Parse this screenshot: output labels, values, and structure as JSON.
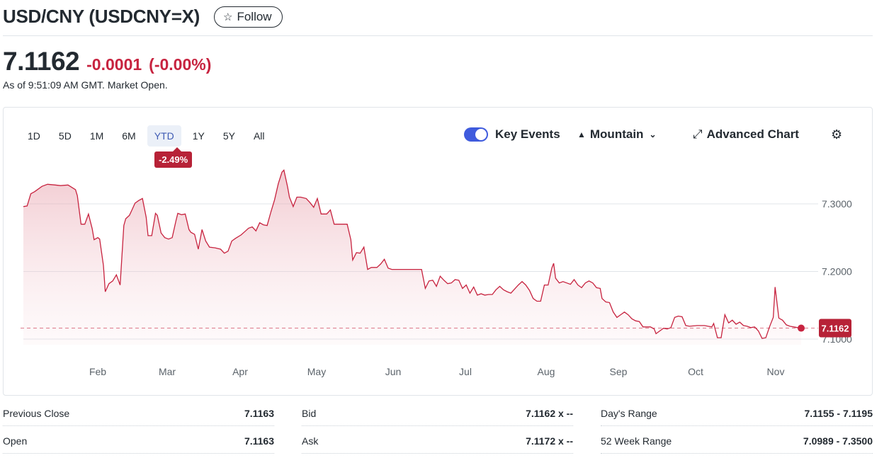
{
  "header": {
    "title": "USD/CNY (USDCNY=X)",
    "follow_label": "Follow",
    "follow_icon": "star-icon"
  },
  "quote": {
    "price": "7.1162",
    "change": "-0.0001",
    "change_pct": "(-0.00%)",
    "as_of": "As of 9:51:09 AM GMT. Market Open.",
    "negative_color": "#c7233f"
  },
  "chart_controls": {
    "ranges": [
      "1D",
      "5D",
      "1M",
      "6M",
      "YTD",
      "1Y",
      "5Y",
      "All"
    ],
    "active_range": "YTD",
    "range_change": "-2.49%",
    "key_events_label": "Key Events",
    "key_events_on": true,
    "chart_type_label": "Mountain",
    "advanced_label": "Advanced Chart",
    "settings_icon": "gear-icon"
  },
  "chart_data": {
    "type": "area",
    "current_value": 7.1162,
    "current_label": "7.1162",
    "line_color": "#c7233f",
    "ylim": [
      7.08,
      7.36
    ],
    "y_ticks": [
      7.3,
      7.2,
      7.1
    ],
    "y_tick_labels": [
      "7.3000",
      "7.2000",
      "7.1000"
    ],
    "x_labels": [
      "Feb",
      "Mar",
      "Apr",
      "May",
      "Jun",
      "Jul",
      "Aug",
      "Sep",
      "Oct",
      "Nov"
    ],
    "x_label_days": [
      31,
      59,
      90,
      120,
      151,
      181,
      212,
      243,
      273,
      304
    ],
    "x_range_days": [
      0,
      316
    ],
    "series": [
      {
        "values": [
          [
            2,
            7.296
          ],
          [
            4,
            7.297
          ],
          [
            6,
            7.315
          ],
          [
            8,
            7.318
          ],
          [
            12,
            7.326
          ],
          [
            15,
            7.329
          ],
          [
            19,
            7.328
          ],
          [
            22,
            7.327
          ],
          [
            26,
            7.328
          ],
          [
            30,
            7.321
          ],
          [
            31,
            7.312
          ],
          [
            33,
            7.27
          ],
          [
            35,
            7.27
          ],
          [
            37,
            7.285
          ],
          [
            39,
            7.263
          ],
          [
            40,
            7.247
          ],
          [
            42,
            7.25
          ],
          [
            43,
            7.248
          ],
          [
            45,
            7.209
          ],
          [
            46,
            7.17
          ],
          [
            48,
            7.182
          ],
          [
            50,
            7.186
          ],
          [
            52,
            7.195
          ],
          [
            54,
            7.18
          ],
          [
            56,
            7.268
          ],
          [
            57,
            7.278
          ],
          [
            59,
            7.283
          ],
          [
            60,
            7.289
          ],
          [
            62,
            7.301
          ],
          [
            64,
            7.305
          ],
          [
            66,
            7.308
          ],
          [
            68,
            7.28
          ],
          [
            69,
            7.253
          ],
          [
            71,
            7.253
          ],
          [
            73,
            7.286
          ],
          [
            74,
            7.283
          ],
          [
            76,
            7.257
          ],
          [
            78,
            7.25
          ],
          [
            80,
            7.248
          ],
          [
            82,
            7.25
          ],
          [
            84,
            7.275
          ],
          [
            85,
            7.286
          ],
          [
            87,
            7.284
          ],
          [
            89,
            7.285
          ],
          [
            91,
            7.262
          ],
          [
            92,
            7.258
          ],
          [
            94,
            7.255
          ],
          [
            96,
            7.233
          ],
          [
            98,
            7.262
          ],
          [
            100,
            7.245
          ],
          [
            102,
            7.236
          ],
          [
            105,
            7.235
          ],
          [
            108,
            7.233
          ],
          [
            110,
            7.227
          ],
          [
            112,
            7.23
          ],
          [
            114,
            7.245
          ],
          [
            116,
            7.249
          ],
          [
            119,
            7.254
          ],
          [
            121,
            7.259
          ],
          [
            123,
            7.264
          ],
          [
            125,
            7.266
          ],
          [
            127,
            7.26
          ],
          [
            129,
            7.272
          ],
          [
            131,
            7.269
          ],
          [
            133,
            7.268
          ],
          [
            135,
            7.288
          ],
          [
            137,
            7.306
          ],
          [
            139,
            7.33
          ],
          [
            141,
            7.347
          ],
          [
            142,
            7.35
          ],
          [
            144,
            7.325
          ],
          [
            145,
            7.31
          ],
          [
            147,
            7.296
          ],
          [
            149,
            7.31
          ],
          [
            151,
            7.31
          ],
          [
            154,
            7.308
          ],
          [
            156,
            7.302
          ],
          [
            158,
            7.295
          ],
          [
            160,
            7.308
          ],
          [
            162,
            7.285
          ],
          [
            165,
            7.285
          ],
          [
            167,
            7.291
          ],
          [
            169,
            7.27
          ],
          [
            172,
            7.27
          ],
          [
            176,
            7.27
          ],
          [
            178,
            7.247
          ],
          [
            179,
            7.217
          ],
          [
            181,
            7.228
          ],
          [
            183,
            7.227
          ],
          [
            185,
            7.236
          ],
          [
            187,
            7.203
          ],
          [
            189,
            7.206
          ],
          [
            192,
            7.206
          ],
          [
            194,
            7.211
          ],
          [
            196,
            7.218
          ],
          [
            198,
            7.205
          ],
          [
            200,
            7.203
          ],
          [
            203,
            7.203
          ],
          [
            208,
            7.203
          ],
          [
            213,
            7.203
          ],
          [
            216,
            7.203
          ],
          [
            218,
            7.175
          ],
          [
            220,
            7.186
          ],
          [
            222,
            7.187
          ],
          [
            224,
            7.178
          ],
          [
            226,
            7.193
          ],
          [
            228,
            7.187
          ],
          [
            230,
            7.182
          ],
          [
            232,
            7.183
          ],
          [
            234,
            7.188
          ],
          [
            236,
            7.187
          ],
          [
            238,
            7.175
          ],
          [
            240,
            7.18
          ],
          [
            242,
            7.168
          ],
          [
            244,
            7.177
          ],
          [
            246,
            7.165
          ],
          [
            248,
            7.167
          ],
          [
            250,
            7.165
          ],
          [
            252,
            7.166
          ],
          [
            254,
            7.166
          ],
          [
            256,
            7.173
          ],
          [
            258,
            7.178
          ],
          [
            260,
            7.173
          ],
          [
            262,
            7.17
          ],
          [
            264,
            7.168
          ],
          [
            266,
            7.174
          ],
          [
            268,
            7.18
          ],
          [
            270,
            7.185
          ],
          [
            272,
            7.18
          ],
          [
            274,
            7.172
          ],
          [
            276,
            7.16
          ],
          [
            278,
            7.156
          ],
          [
            280,
            7.156
          ],
          [
            282,
            7.18
          ],
          [
            284,
            7.18
          ],
          [
            286,
            7.205
          ],
          [
            287,
            7.212
          ],
          [
            288,
            7.19
          ],
          [
            290,
            7.183
          ],
          [
            292,
            7.185
          ],
          [
            294,
            7.183
          ],
          [
            296,
            7.181
          ],
          [
            298,
            7.188
          ],
          [
            300,
            7.18
          ],
          [
            302,
            7.176
          ],
          [
            304,
            7.183
          ],
          [
            306,
            7.186
          ],
          [
            308,
            7.183
          ],
          [
            310,
            7.176
          ],
          [
            312,
            7.175
          ],
          [
            313,
            7.16
          ],
          [
            315,
            7.155
          ],
          [
            317,
            7.154
          ],
          [
            319,
            7.14
          ],
          [
            321,
            7.132
          ],
          [
            323,
            7.136
          ],
          [
            325,
            7.14
          ],
          [
            327,
            7.136
          ],
          [
            329,
            7.13
          ],
          [
            331,
            7.127
          ],
          [
            333,
            7.126
          ],
          [
            335,
            7.118
          ],
          [
            337,
            7.118
          ],
          [
            339,
            7.118
          ],
          [
            341,
            7.115
          ],
          [
            342,
            7.108
          ],
          [
            344,
            7.112
          ],
          [
            346,
            7.116
          ],
          [
            348,
            7.115
          ],
          [
            350,
            7.117
          ],
          [
            352,
            7.132
          ],
          [
            354,
            7.134
          ],
          [
            356,
            7.133
          ],
          [
            358,
            7.12
          ],
          [
            360,
            7.119
          ],
          [
            364,
            7.12
          ],
          [
            368,
            7.12
          ],
          [
            370,
            7.119
          ],
          [
            372,
            7.118
          ],
          [
            373,
            7.123
          ],
          [
            375,
            7.102
          ],
          [
            377,
            7.102
          ],
          [
            379,
            7.136
          ],
          [
            381,
            7.124
          ],
          [
            383,
            7.128
          ],
          [
            385,
            7.122
          ],
          [
            387,
            7.125
          ],
          [
            389,
            7.12
          ],
          [
            391,
            7.119
          ],
          [
            393,
            7.117
          ],
          [
            395,
            7.118
          ],
          [
            397,
            7.112
          ],
          [
            399,
            7.101
          ],
          [
            401,
            7.102
          ],
          [
            403,
            7.118
          ],
          [
            405,
            7.132
          ],
          [
            406,
            7.177
          ],
          [
            408,
            7.131
          ],
          [
            410,
            7.128
          ],
          [
            412,
            7.121
          ],
          [
            414,
            7.119
          ],
          [
            416,
            7.118
          ],
          [
            418,
            7.117
          ],
          [
            420,
            7.1162
          ]
        ]
      }
    ]
  },
  "stats": {
    "col1": [
      {
        "label": "Previous Close",
        "value": "7.1163"
      },
      {
        "label": "Open",
        "value": "7.1163"
      }
    ],
    "col2": [
      {
        "label": "Bid",
        "value": "7.1162 x --"
      },
      {
        "label": "Ask",
        "value": "7.1172 x --"
      }
    ],
    "col3": [
      {
        "label": "Day's Range",
        "value": "7.1155 - 7.1195"
      },
      {
        "label": "52 Week Range",
        "value": "7.0989 - 7.3500"
      }
    ]
  }
}
